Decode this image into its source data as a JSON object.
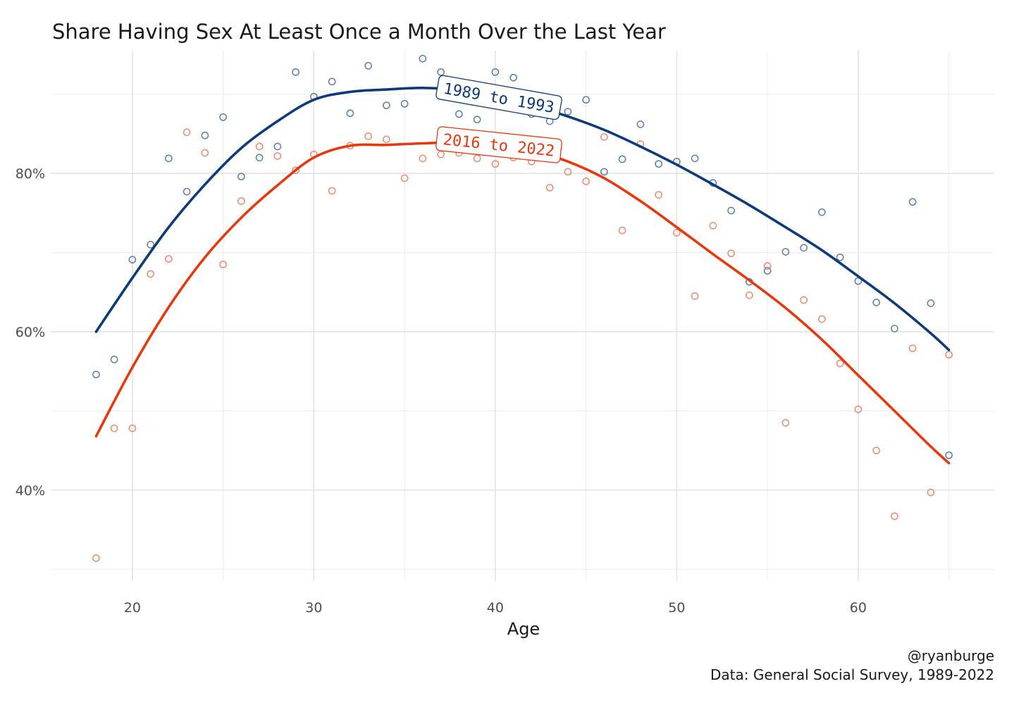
{
  "chart_data": {
    "type": "scatter",
    "title": "Share Having Sex At Least Once a Month Over the Last Year",
    "xlabel": "Age",
    "ylabel": "",
    "xlim": [
      15.5,
      67.5
    ],
    "ylim": [
      0.285,
      0.955
    ],
    "x_ticks": [
      20,
      30,
      40,
      50,
      60
    ],
    "x_tick_labels": [
      "20",
      "30",
      "40",
      "50",
      "60"
    ],
    "y_ticks": [
      0.4,
      0.6,
      0.8
    ],
    "y_tick_labels": [
      "40%",
      "60%",
      "80%"
    ],
    "grid": true,
    "caption": [
      "@ryanburge",
      "Data: General Social Survey, 1989-2022"
    ],
    "series": [
      {
        "name": "1989 to 1993",
        "color": "#0b3b7a",
        "point_color": "#5b7fa8",
        "label_age": 40.2,
        "label_rotation": 10,
        "points": {
          "x": [
            18,
            19,
            20,
            21,
            22,
            23,
            24,
            25,
            26,
            27,
            28,
            29,
            30,
            31,
            32,
            33,
            34,
            35,
            36,
            37,
            38,
            39,
            40,
            41,
            42,
            43,
            44,
            45,
            46,
            47,
            48,
            49,
            50,
            51,
            52,
            53,
            54,
            55,
            56,
            57,
            58,
            59,
            60,
            61,
            62,
            63,
            64,
            65
          ],
          "y": [
            0.546,
            0.565,
            0.691,
            0.71,
            0.819,
            0.777,
            0.848,
            0.871,
            0.796,
            0.82,
            0.834,
            0.928,
            0.897,
            0.916,
            0.876,
            0.936,
            0.886,
            0.888,
            0.945,
            0.928,
            0.875,
            0.868,
            0.928,
            0.921,
            0.875,
            0.866,
            0.878,
            0.893,
            0.802,
            0.818,
            0.862,
            0.812,
            0.815,
            0.819,
            0.788,
            0.753,
            0.663,
            0.677,
            0.701,
            0.706,
            0.751,
            0.694,
            0.664,
            0.637,
            0.604,
            0.764,
            0.636,
            0.444
          ]
        },
        "smooth": {
          "x": [
            18,
            20,
            22,
            24,
            26,
            28,
            30,
            32,
            34,
            36,
            38,
            40,
            42,
            44,
            46,
            48,
            50,
            52,
            54,
            56,
            58,
            60,
            62,
            64,
            65
          ],
          "y": [
            0.6,
            0.668,
            0.732,
            0.786,
            0.832,
            0.866,
            0.893,
            0.903,
            0.906,
            0.908,
            0.905,
            0.897,
            0.886,
            0.872,
            0.855,
            0.834,
            0.811,
            0.786,
            0.76,
            0.732,
            0.703,
            0.67,
            0.636,
            0.598,
            0.577
          ]
        }
      },
      {
        "name": "2016 to 2022",
        "color": "#e8380d",
        "point_color": "#ec8a6c",
        "label_age": 40.2,
        "label_rotation": 6,
        "points": {
          "x": [
            18,
            19,
            20,
            21,
            22,
            23,
            24,
            25,
            26,
            27,
            28,
            29,
            30,
            31,
            32,
            33,
            34,
            35,
            36,
            37,
            38,
            39,
            40,
            41,
            42,
            43,
            44,
            45,
            46,
            47,
            48,
            49,
            50,
            51,
            52,
            53,
            54,
            55,
            56,
            57,
            58,
            59,
            60,
            61,
            62,
            63,
            64,
            65
          ],
          "y": [
            0.314,
            0.478,
            0.478,
            0.673,
            0.692,
            0.852,
            0.826,
            0.685,
            0.765,
            0.834,
            0.822,
            0.804,
            0.824,
            0.778,
            0.835,
            0.847,
            0.843,
            0.794,
            0.819,
            0.824,
            0.826,
            0.819,
            0.812,
            0.82,
            0.815,
            0.782,
            0.802,
            0.79,
            0.846,
            0.728,
            0.837,
            0.773,
            0.725,
            0.645,
            0.734,
            0.699,
            0.646,
            0.683,
            0.485,
            0.64,
            0.616,
            0.56,
            0.502,
            0.45,
            0.367,
            0.579,
            0.397,
            0.571
          ]
        },
        "smooth": {
          "x": [
            18,
            20,
            22,
            24,
            26,
            28,
            30,
            32,
            34,
            36,
            38,
            40,
            42,
            44,
            46,
            48,
            50,
            52,
            54,
            56,
            58,
            60,
            62,
            64,
            65
          ],
          "y": [
            0.468,
            0.555,
            0.631,
            0.694,
            0.744,
            0.785,
            0.82,
            0.835,
            0.836,
            0.838,
            0.839,
            0.837,
            0.829,
            0.815,
            0.794,
            0.765,
            0.732,
            0.698,
            0.665,
            0.63,
            0.59,
            0.545,
            0.5,
            0.455,
            0.434
          ]
        }
      }
    ]
  }
}
